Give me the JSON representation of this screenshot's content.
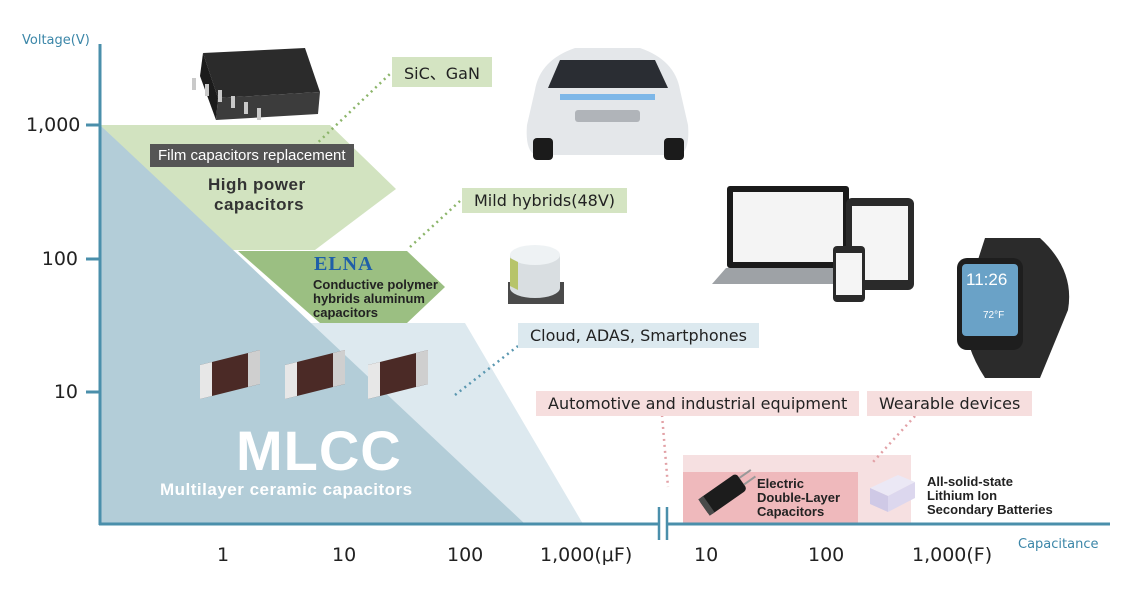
{
  "axes": {
    "y_title": "Voltage(V)",
    "x_title": "Capacitance",
    "y_ticks": [
      "1,000",
      "100",
      "10"
    ],
    "x_ticks_uF": [
      "1",
      "10",
      "100",
      "1,000(μF)"
    ],
    "x_ticks_F": [
      "10",
      "100",
      "1,000(F)"
    ]
  },
  "regions": {
    "mlcc_title": "MLCC",
    "mlcc_subtitle": "Multilayer ceramic capacitors",
    "film_banner": "Film capacitors replacement",
    "high_power_line1": "High power",
    "high_power_line2": "capacitors",
    "elna_logo": "ELNA",
    "polymer_line1": "Conductive polymer",
    "polymer_line2": "hybrids aluminum",
    "polymer_line3": "capacitors",
    "edlc_line1": "Electric",
    "edlc_line2": "Double-Layer",
    "edlc_line3": "Capacitors",
    "battery_line1": "All-solid-state",
    "battery_line2": "Lithium Ion",
    "battery_line3": "Secondary Batteries"
  },
  "applications": {
    "sic_gan": "SiC、GaN",
    "mild_hybrids": "Mild hybrids(48V)",
    "cloud": "Cloud, ADAS, Smartphones",
    "automotive": "Automotive and industrial equipment",
    "wearable": "Wearable devices"
  },
  "devices": {
    "watch_time": "11:26",
    "watch_temp": "72°F"
  },
  "colors": {
    "axis": "#4a8fab",
    "mlcc_region": "#b3cdd8",
    "mlcc_light": "#dde9ef",
    "green_light": "#d2e3c0",
    "green_dark": "#9bbf82",
    "pink": "#f3cfd1",
    "elna_blue": "#1f5fa8"
  }
}
